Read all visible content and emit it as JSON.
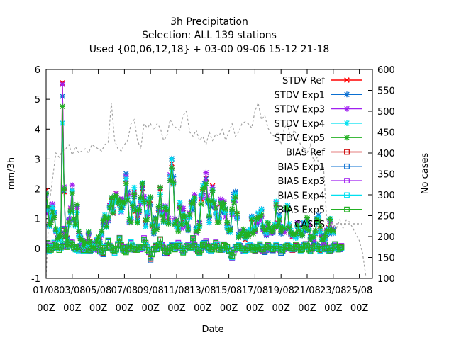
{
  "chart_data": {
    "type": "line",
    "title_lines": [
      "3h Precipitation",
      "Selection: ALL    139 stations",
      "Used {00,06,12,18} + 03-00 09-06 15-12 21-18"
    ],
    "xlabel": "Date",
    "ylabel": "mm/3h",
    "y2label": "No cases",
    "ylim": [
      -1,
      6
    ],
    "y2lim": [
      100,
      600
    ],
    "xlim": [
      0,
      25
    ],
    "y_ticks": [
      -1,
      0,
      1,
      2,
      3,
      4,
      5,
      6
    ],
    "y2_ticks": [
      100,
      150,
      200,
      250,
      300,
      350,
      400,
      450,
      500,
      550,
      600
    ],
    "x_ticks": [
      {
        "at": 0,
        "date": "01/08",
        "hour": "00Z"
      },
      {
        "at": 2,
        "date": "03/08",
        "hour": "00Z"
      },
      {
        "at": 4,
        "date": "05/08",
        "hour": "00Z"
      },
      {
        "at": 6,
        "date": "07/08",
        "hour": "00Z"
      },
      {
        "at": 8,
        "date": "09/08",
        "hour": "00Z"
      },
      {
        "at": 10,
        "date": "11/08",
        "hour": "00Z"
      },
      {
        "at": 12,
        "date": "13/08",
        "hour": "00Z"
      },
      {
        "at": 14,
        "date": "15/08",
        "hour": "00Z"
      },
      {
        "at": 16,
        "date": "17/08",
        "hour": "00Z"
      },
      {
        "at": 18,
        "date": "19/08",
        "hour": "00Z"
      },
      {
        "at": 20,
        "date": "21/08",
        "hour": "00Z"
      },
      {
        "at": 22,
        "date": "23/08",
        "hour": "00Z"
      },
      {
        "at": 24,
        "date": "25/08",
        "hour": "00Z"
      }
    ],
    "legend_position": "top-right",
    "grid": false,
    "series": [
      {
        "name": "STDV Ref",
        "color": "#ff0000",
        "marker": "x"
      },
      {
        "name": "STDV Exp1",
        "color": "#0a6fd1",
        "marker": "star"
      },
      {
        "name": "STDV Exp3",
        "color": "#a020f0",
        "marker": "star"
      },
      {
        "name": "STDV Exp4",
        "color": "#00e0f0",
        "marker": "star"
      },
      {
        "name": "STDV Exp5",
        "color": "#22b022",
        "marker": "star"
      },
      {
        "name": "BIAS Ref",
        "color": "#cc0000",
        "marker": "square"
      },
      {
        "name": "BIAS Exp1",
        "color": "#0a6fd1",
        "marker": "square"
      },
      {
        "name": "BIAS Exp3",
        "color": "#a020f0",
        "marker": "square"
      },
      {
        "name": "BIAS Exp4",
        "color": "#00e0f0",
        "marker": "square"
      },
      {
        "name": "BIAS Exp5",
        "color": "#22b022",
        "marker": "square"
      },
      {
        "name": "CASES",
        "color": "#a0a0a0",
        "marker": "none",
        "dashed": true,
        "axis": "y2"
      }
    ],
    "stdv_x": [
      0,
      0.125,
      0.25,
      0.375,
      0.5,
      0.625,
      0.75,
      0.875,
      1.0,
      1.125,
      1.25,
      1.375,
      1.5,
      1.625,
      1.75,
      1.875,
      2.0,
      2.125,
      2.25,
      2.375,
      2.5,
      2.625,
      2.75,
      2.875,
      3.0,
      3.125,
      3.25,
      3.375,
      3.5,
      3.625,
      3.75,
      3.875,
      4.0,
      4.125,
      4.25,
      4.375,
      4.5,
      4.625,
      4.75,
      4.875,
      5.0,
      5.125,
      5.25,
      5.375,
      5.5,
      5.625,
      5.75,
      5.875,
      6.0,
      6.125,
      6.25,
      6.375,
      6.5,
      6.625,
      6.75,
      6.875,
      7.0,
      7.125,
      7.25,
      7.375,
      7.5,
      7.625,
      7.75,
      7.875,
      8.0,
      8.125,
      8.25,
      8.375,
      8.5,
      8.625,
      8.75,
      8.875,
      9.0,
      9.125,
      9.25,
      9.375,
      9.5,
      9.625,
      9.75,
      9.875,
      10.0,
      10.125,
      10.25,
      10.375,
      10.5,
      10.625,
      10.75,
      10.875,
      11.0,
      11.125,
      11.25,
      11.375,
      11.5,
      11.625,
      11.75,
      11.875,
      12.0,
      12.125,
      12.25,
      12.375,
      12.5,
      12.625,
      12.75,
      12.875,
      13.0,
      13.125,
      13.25,
      13.375,
      13.5,
      13.625,
      13.75,
      13.875,
      14.0,
      14.125,
      14.25,
      14.375,
      14.5,
      14.625,
      14.75,
      14.875,
      15.0,
      15.125,
      15.25,
      15.375,
      15.5,
      15.625,
      15.75,
      15.875,
      16.0,
      16.125,
      16.25,
      16.375,
      16.5,
      16.625,
      16.75,
      16.875,
      17.0,
      17.125,
      17.25,
      17.375,
      17.5,
      17.625,
      17.75,
      17.875,
      18.0,
      18.125,
      18.25,
      18.375,
      18.5,
      18.625,
      18.75,
      18.875,
      19.0,
      19.125,
      19.25,
      19.375,
      19.5,
      19.625,
      19.75,
      19.875,
      20.0,
      20.125,
      20.25,
      20.375,
      20.5,
      20.625,
      20.75,
      20.875,
      21.0,
      21.125,
      21.25,
      21.375,
      21.5,
      21.625,
      21.75,
      21.875,
      22.0,
      22.125,
      22.25,
      22.375,
      22.5,
      22.625,
      22.75,
      22.875,
      23.0,
      23.125,
      23.25,
      23.375,
      23.5,
      23.625,
      23.75,
      23.875,
      24.0,
      24.125,
      24.25,
      24.375
    ],
    "stdv_base": [
      1.95,
      1.3,
      0.8,
      1.0,
      1.35,
      1.1,
      0.55,
      0.35,
      0.55,
      0.4,
      4.7,
      1.9,
      0.4,
      0.35,
      0.9,
      1.3,
      1.95,
      1.0,
      0.85,
      1.35,
      0.5,
      0.35,
      0.2,
      0.1,
      0.15,
      0.2,
      0.45,
      0.25,
      0.05,
      0.0,
      0.05,
      0.25,
      0.3,
      0.25,
      0.5,
      0.9,
      1.0,
      0.8,
      1.0,
      1.45,
      1.6,
      1.2,
      1.7,
      1.85,
      1.65,
      1.5,
      1.3,
      1.5,
      1.6,
      2.3,
      1.75,
      0.9,
      1.0,
      1.5,
      1.9,
      1.25,
      1.0,
      1.25,
      1.6,
      2.0,
      1.6,
      0.85,
      1.1,
      1.5,
      1.6,
      0.75,
      0.6,
      0.9,
      0.7,
      1.3,
      2.0,
      1.2,
      0.9,
      1.3,
      1.2,
      0.9,
      2.4,
      2.85,
      2.2,
      0.9,
      0.85,
      0.7,
      1.45,
      0.8,
      1.2,
      1.0,
      0.75,
      0.7,
      1.05,
      1.55,
      1.4,
      1.7,
      0.6,
      0.7,
      0.85,
      1.65,
      1.9,
      2.05,
      2.35,
      1.6,
      1.0,
      1.55,
      2.1,
      1.45,
      1.25,
      0.95,
      1.0,
      1.5,
      1.35,
      1.45,
      1.2,
      0.75,
      0.55,
      0.65,
      1.2,
      1.65,
      1.75,
      1.15,
      0.4,
      0.5,
      0.55,
      0.55,
      0.3,
      0.5,
      0.5,
      0.6,
      1.0,
      0.6,
      0.65,
      0.9,
      1.15,
      1.05,
      1.2,
      0.7,
      0.6,
      0.55,
      0.8,
      0.65,
      0.6,
      0.55,
      0.75,
      1.5,
      0.85,
      1.0,
      0.6,
      0.7,
      0.6,
      1.3,
      1.35,
      0.75,
      0.5,
      0.4,
      0.5,
      0.45,
      0.8,
      0.6,
      0.5,
      0.5,
      0.8,
      0.7,
      0.9,
      0.7,
      0.4,
      0.35,
      0.3,
      0.5,
      0.9,
      1.0,
      0.65,
      0.35,
      0.25,
      0.35,
      0.55,
      0.7,
      0.9,
      0.6,
      0.55
    ],
    "bias_x": [
      0,
      0.125,
      0.25,
      0.375,
      0.5,
      0.625,
      0.75,
      0.875,
      1.0,
      1.125,
      1.25,
      1.375,
      1.5,
      1.625,
      1.75,
      1.875,
      2.0,
      2.125,
      2.25,
      2.375,
      2.5,
      2.625,
      2.75,
      2.875,
      3.0,
      3.125,
      3.25,
      3.375,
      3.5,
      3.625,
      3.75,
      3.875,
      4.0,
      4.125,
      4.25,
      4.375,
      4.5,
      4.625,
      4.75,
      4.875,
      5.0,
      5.125,
      5.25,
      5.375,
      5.5,
      5.625,
      5.75,
      5.875,
      6.0,
      6.125,
      6.25,
      6.375,
      6.5,
      6.625,
      6.75,
      6.875,
      7.0,
      7.125,
      7.25,
      7.375,
      7.5,
      7.625,
      7.75,
      7.875,
      8.0,
      8.125,
      8.25,
      8.375,
      8.5,
      8.625,
      8.75,
      8.875,
      9.0,
      9.125,
      9.25,
      9.375,
      9.5,
      9.625,
      9.75,
      9.875,
      10.0,
      10.125,
      10.25,
      10.375,
      10.5,
      10.625,
      10.75,
      10.875,
      11.0,
      11.125,
      11.25,
      11.375,
      11.5,
      11.625,
      11.75,
      11.875,
      12.0,
      12.125,
      12.25,
      12.375,
      12.5,
      12.625,
      12.75,
      12.875,
      13.0,
      13.125,
      13.25,
      13.375,
      13.5,
      13.625,
      13.75,
      13.875,
      14.0,
      14.125,
      14.25,
      14.375,
      14.5,
      14.625,
      14.75,
      14.875,
      15.0,
      15.125,
      15.25,
      15.375,
      15.5,
      15.625,
      15.75,
      15.875,
      16.0,
      16.125,
      16.25,
      16.375,
      16.5,
      16.625,
      16.75,
      16.875,
      17.0,
      17.125,
      17.25,
      17.375,
      17.5,
      17.625,
      17.75,
      17.875,
      18.0,
      18.125,
      18.25,
      18.375,
      18.5,
      18.625,
      18.75,
      18.875,
      19.0,
      19.125,
      19.25,
      19.375,
      19.5,
      19.625,
      19.75,
      19.875,
      20.0,
      20.125,
      20.25,
      20.375,
      20.5,
      20.625,
      20.75,
      20.875,
      21.0,
      21.125,
      21.25,
      21.375,
      21.5,
      21.625,
      21.75,
      21.875,
      22.0,
      22.125,
      22.25,
      22.375,
      22.5,
      22.625,
      22.75,
      22.875,
      23.0,
      23.125,
      23.25,
      23.375,
      23.5,
      23.625,
      23.75,
      23.875,
      24.0,
      24.125,
      24.25,
      24.375
    ],
    "bias_base": [
      0.1,
      0.15,
      -0.05,
      0.0,
      0.05,
      0.15,
      0.05,
      0.05,
      0.0,
      0.05,
      0.15,
      0.6,
      0.05,
      0.1,
      0.15,
      0.2,
      0.15,
      0.05,
      0.0,
      0.0,
      -0.05,
      0.05,
      0.0,
      -0.05,
      0.05,
      0.0,
      -0.1,
      -0.05,
      0.05,
      0.1,
      0.15,
      0.05,
      0.0,
      -0.05,
      -0.1,
      -0.15,
      0.0,
      0.05,
      0.25,
      0.1,
      0.0,
      -0.05,
      -0.1,
      0.0,
      0.15,
      0.3,
      0.1,
      0.0,
      -0.05,
      -0.1,
      0.0,
      0.05,
      0.2,
      0.1,
      0.0,
      -0.05,
      0.0,
      0.05,
      0.0,
      0.0,
      0.3,
      0.15,
      0.0,
      -0.1,
      -0.35,
      -0.2,
      0.0,
      0.05,
      0.0,
      0.1,
      0.3,
      0.1,
      0.0,
      -0.1,
      -0.15,
      -0.05,
      0.05,
      0.1,
      0.05,
      0.0,
      0.05,
      0.15,
      0.1,
      0.0,
      -0.1,
      -0.05,
      0.05,
      0.1,
      0.0,
      0.05,
      0.3,
      0.1,
      0.0,
      -0.05,
      -0.1,
      0.0,
      0.1,
      0.15,
      0.2,
      0.05,
      0.0,
      -0.05,
      0.0,
      0.05,
      0.15,
      0.1,
      0.0,
      -0.05,
      0.0,
      0.1,
      0.05,
      0.0,
      -0.1,
      -0.2,
      -0.3,
      -0.1,
      0.0,
      0.05,
      0.1,
      0.05,
      0.0,
      -0.05,
      -0.1,
      0.0,
      0.05,
      0.1,
      0.05,
      0.0,
      -0.05,
      0.0,
      0.05,
      0.1,
      0.0,
      -0.05,
      -0.1,
      0.0,
      0.1,
      0.05,
      0.0,
      -0.05,
      0.0,
      0.1,
      0.05,
      0.0,
      -0.1,
      -0.05,
      0.0,
      0.05,
      0.1,
      0.05,
      0.0,
      -0.05,
      0.0,
      0.1,
      0.05,
      0.0,
      -0.05,
      0.0,
      0.1,
      0.15,
      0.05,
      0.0,
      -0.05,
      0.0,
      0.05,
      0.1,
      0.05,
      0.0,
      -0.05,
      0.0,
      0.05,
      0.1,
      0.0,
      -0.05,
      -0.1,
      0.0,
      0.05,
      0.1,
      0.05,
      0.0,
      0.0,
      0.05
    ],
    "cases_x": [
      0,
      0.25,
      0.5,
      0.75,
      1.0,
      1.25,
      1.5,
      1.75,
      2.0,
      2.25,
      2.5,
      2.75,
      3.0,
      3.25,
      3.5,
      3.75,
      4.0,
      4.25,
      4.5,
      4.75,
      5.0,
      5.25,
      5.5,
      5.75,
      6.0,
      6.25,
      6.5,
      6.75,
      7.0,
      7.25,
      7.5,
      7.75,
      8.0,
      8.25,
      8.5,
      8.75,
      9.0,
      9.25,
      9.5,
      9.75,
      10.0,
      10.25,
      10.5,
      10.75,
      11.0,
      11.25,
      11.5,
      11.75,
      12.0,
      12.25,
      12.5,
      12.75,
      13.0,
      13.25,
      13.5,
      13.75,
      14.0,
      14.25,
      14.5,
      14.75,
      15.0,
      15.25,
      15.5,
      15.75,
      16.0,
      16.25,
      16.5,
      16.75,
      17.0,
      17.25,
      17.5,
      17.75,
      18.0,
      18.25,
      18.5,
      18.75,
      19.0,
      19.25,
      19.5,
      19.75,
      20.0,
      20.25,
      20.5,
      20.75,
      21.0,
      21.25,
      21.5,
      21.75,
      22.0,
      22.25,
      22.5,
      22.75,
      23.0,
      23.25,
      23.5,
      23.75,
      24.0,
      24.25,
      24.5
    ],
    "cases": [
      105,
      280,
      340,
      400,
      390,
      405,
      410,
      420,
      395,
      415,
      400,
      405,
      410,
      400,
      420,
      415,
      410,
      405,
      420,
      425,
      520,
      430,
      410,
      405,
      420,
      430,
      470,
      480,
      430,
      410,
      470,
      460,
      470,
      455,
      470,
      460,
      430,
      440,
      480,
      465,
      460,
      455,
      490,
      500,
      450,
      440,
      455,
      430,
      440,
      420,
      450,
      430,
      445,
      440,
      460,
      430,
      450,
      470,
      440,
      450,
      470,
      475,
      470,
      460,
      500,
      520,
      480,
      490,
      460,
      445,
      440,
      450,
      420,
      460,
      470,
      430,
      455,
      440,
      420,
      410,
      400,
      420,
      380,
      390,
      360,
      370,
      240,
      250,
      230,
      220,
      240,
      220,
      240,
      235,
      220,
      205,
      190,
      160,
      105
    ]
  }
}
